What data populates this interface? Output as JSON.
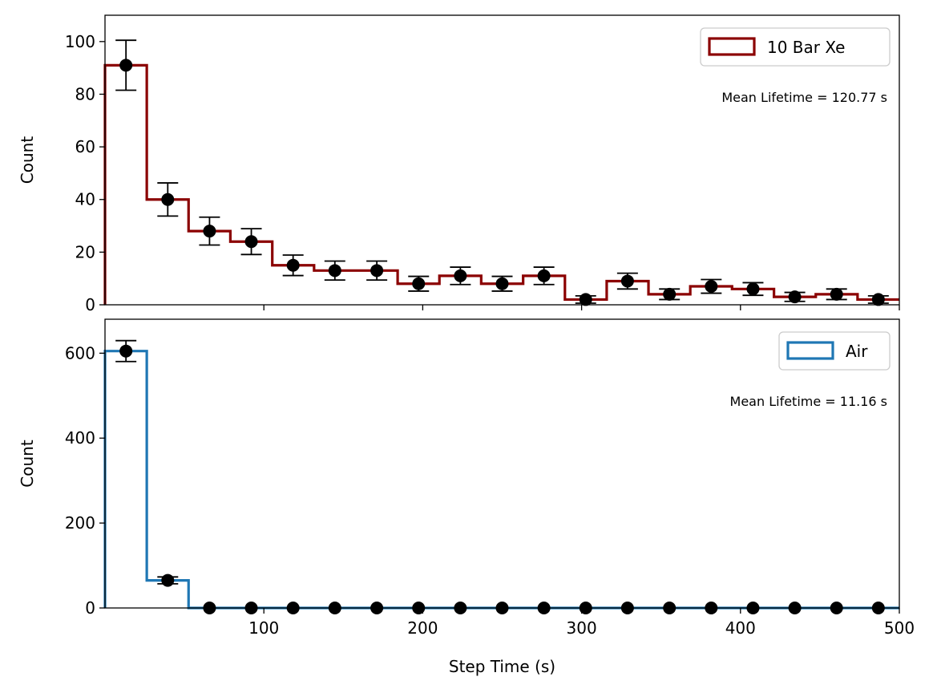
{
  "chart_data": [
    {
      "type": "histogram",
      "xlabel": "",
      "ylabel": "Count",
      "xlim": [
        0,
        500
      ],
      "ylim": [
        0,
        110
      ],
      "yticks": [
        0,
        20,
        40,
        60,
        80,
        100
      ],
      "xticks": [
        100,
        200,
        300,
        400,
        500
      ],
      "show_xtick_labels": false,
      "grid": false,
      "legend": {
        "location": "top-right",
        "label": "10 Bar Xe"
      },
      "annotation": "Mean Lifetime = 120.77 s",
      "series": [
        {
          "name": "10 Bar Xe",
          "style": "step-histogram",
          "color": "#8b0000",
          "bin_edges": [
            0,
            26.3,
            52.6,
            78.9,
            105.3,
            131.6,
            157.9,
            184.2,
            210.5,
            236.8,
            263.2,
            289.5,
            315.8,
            342.1,
            368.4,
            394.7,
            421.1,
            447.4,
            473.7,
            500
          ],
          "counts": [
            91,
            40,
            28,
            24,
            15,
            13,
            13,
            8,
            11,
            8,
            11,
            2,
            9,
            4,
            7,
            6,
            3,
            4,
            2
          ]
        },
        {
          "name": "",
          "style": "errorbar-points",
          "color": "#000000",
          "x": [
            13.2,
            39.5,
            65.8,
            92.1,
            118.4,
            144.7,
            171.1,
            197.4,
            223.7,
            250.0,
            276.3,
            302.6,
            328.9,
            355.3,
            381.6,
            407.9,
            434.2,
            460.5,
            486.8
          ],
          "y": [
            91,
            40,
            28,
            24,
            15,
            13,
            13,
            8,
            11,
            8,
            11,
            2,
            9,
            4,
            7,
            6,
            3,
            4,
            2
          ],
          "yerr": [
            9.5,
            6.3,
            5.3,
            4.9,
            3.9,
            3.6,
            3.6,
            2.8,
            3.3,
            2.8,
            3.3,
            1.4,
            3.0,
            2.0,
            2.6,
            2.4,
            1.7,
            2.0,
            1.4
          ]
        }
      ]
    },
    {
      "type": "histogram",
      "xlabel": "Step Time (s)",
      "ylabel": "Count",
      "xlim": [
        0,
        500
      ],
      "ylim": [
        0,
        680
      ],
      "yticks": [
        0,
        200,
        400,
        600
      ],
      "xticks": [
        100,
        200,
        300,
        400,
        500
      ],
      "show_xtick_labels": true,
      "grid": false,
      "legend": {
        "location": "top-right",
        "label": "Air"
      },
      "annotation": "Mean Lifetime = 11.16 s",
      "series": [
        {
          "name": "Air",
          "style": "step-histogram",
          "color": "#1f77b4",
          "bin_edges": [
            0,
            26.3,
            52.6,
            78.9,
            105.3,
            131.6,
            157.9,
            184.2,
            210.5,
            236.8,
            263.2,
            289.5,
            315.8,
            342.1,
            368.4,
            394.7,
            421.1,
            447.4,
            473.7,
            500
          ],
          "counts": [
            605,
            65,
            0,
            0,
            0,
            0,
            0,
            0,
            0,
            0,
            0,
            0,
            0,
            0,
            0,
            0,
            0,
            0,
            0
          ]
        },
        {
          "name": "",
          "style": "errorbar-points",
          "color": "#000000",
          "x": [
            13.2,
            39.5,
            65.8,
            92.1,
            118.4,
            144.7,
            171.1,
            197.4,
            223.7,
            250.0,
            276.3,
            302.6,
            328.9,
            355.3,
            381.6,
            407.9,
            434.2,
            460.5,
            486.8
          ],
          "y": [
            605,
            65,
            0,
            0,
            0,
            0,
            0,
            0,
            0,
            0,
            0,
            0,
            0,
            0,
            0,
            0,
            0,
            0,
            0
          ],
          "yerr": [
            24.6,
            8.1,
            0,
            0,
            0,
            0,
            0,
            0,
            0,
            0,
            0,
            0,
            0,
            0,
            0,
            0,
            0,
            0,
            0
          ]
        }
      ]
    }
  ]
}
